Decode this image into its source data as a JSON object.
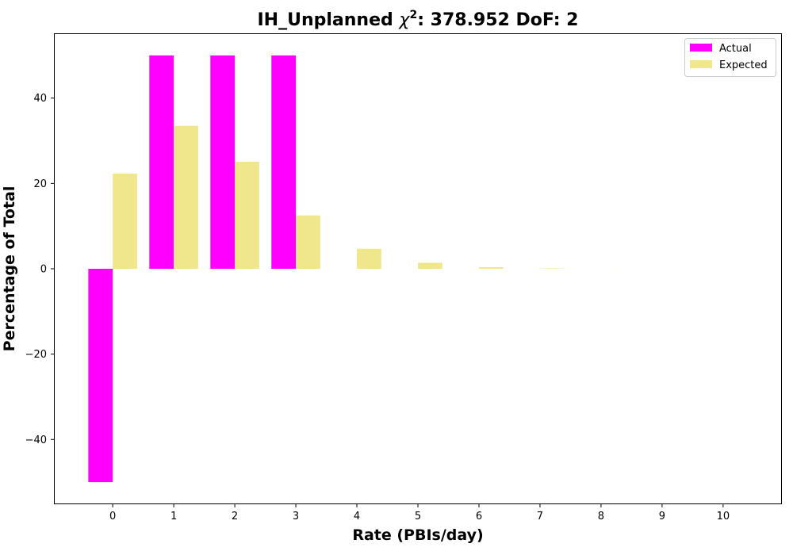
{
  "chart_data": {
    "type": "bar",
    "title_main": "IH_Unplanned ",
    "title_chi": "χ",
    "title_sup": "2",
    "title_rest": ": 378.952 DoF: 2",
    "xlabel": "Rate (PBIs/day)",
    "ylabel": "Percentage of Total",
    "categories": [
      "0",
      "1",
      "2",
      "3",
      "4",
      "5",
      "6",
      "7",
      "8",
      "9",
      "10"
    ],
    "x": [
      0,
      1,
      2,
      3,
      4,
      5,
      6,
      7,
      8,
      9,
      10
    ],
    "xlim": [
      -0.95,
      10.95
    ],
    "ylim": [
      -55,
      55
    ],
    "yticks": [
      -40,
      -20,
      0,
      20,
      40
    ],
    "ytick_labels": [
      "−40",
      "−20",
      "0",
      "20",
      "40"
    ],
    "grid": false,
    "legend_position": "upper right",
    "series": [
      {
        "name": "Actual",
        "color": "#ff00ff",
        "offset": -0.2,
        "values": [
          -50,
          50,
          50,
          50,
          0,
          0,
          0,
          0,
          0,
          0,
          0
        ]
      },
      {
        "name": "Expected",
        "color": "#f0e68c",
        "offset": 0.2,
        "values": [
          22.3,
          33.5,
          25.1,
          12.5,
          4.7,
          1.4,
          0.35,
          0.08,
          0.015,
          0.0025,
          0.0004
        ]
      }
    ]
  }
}
